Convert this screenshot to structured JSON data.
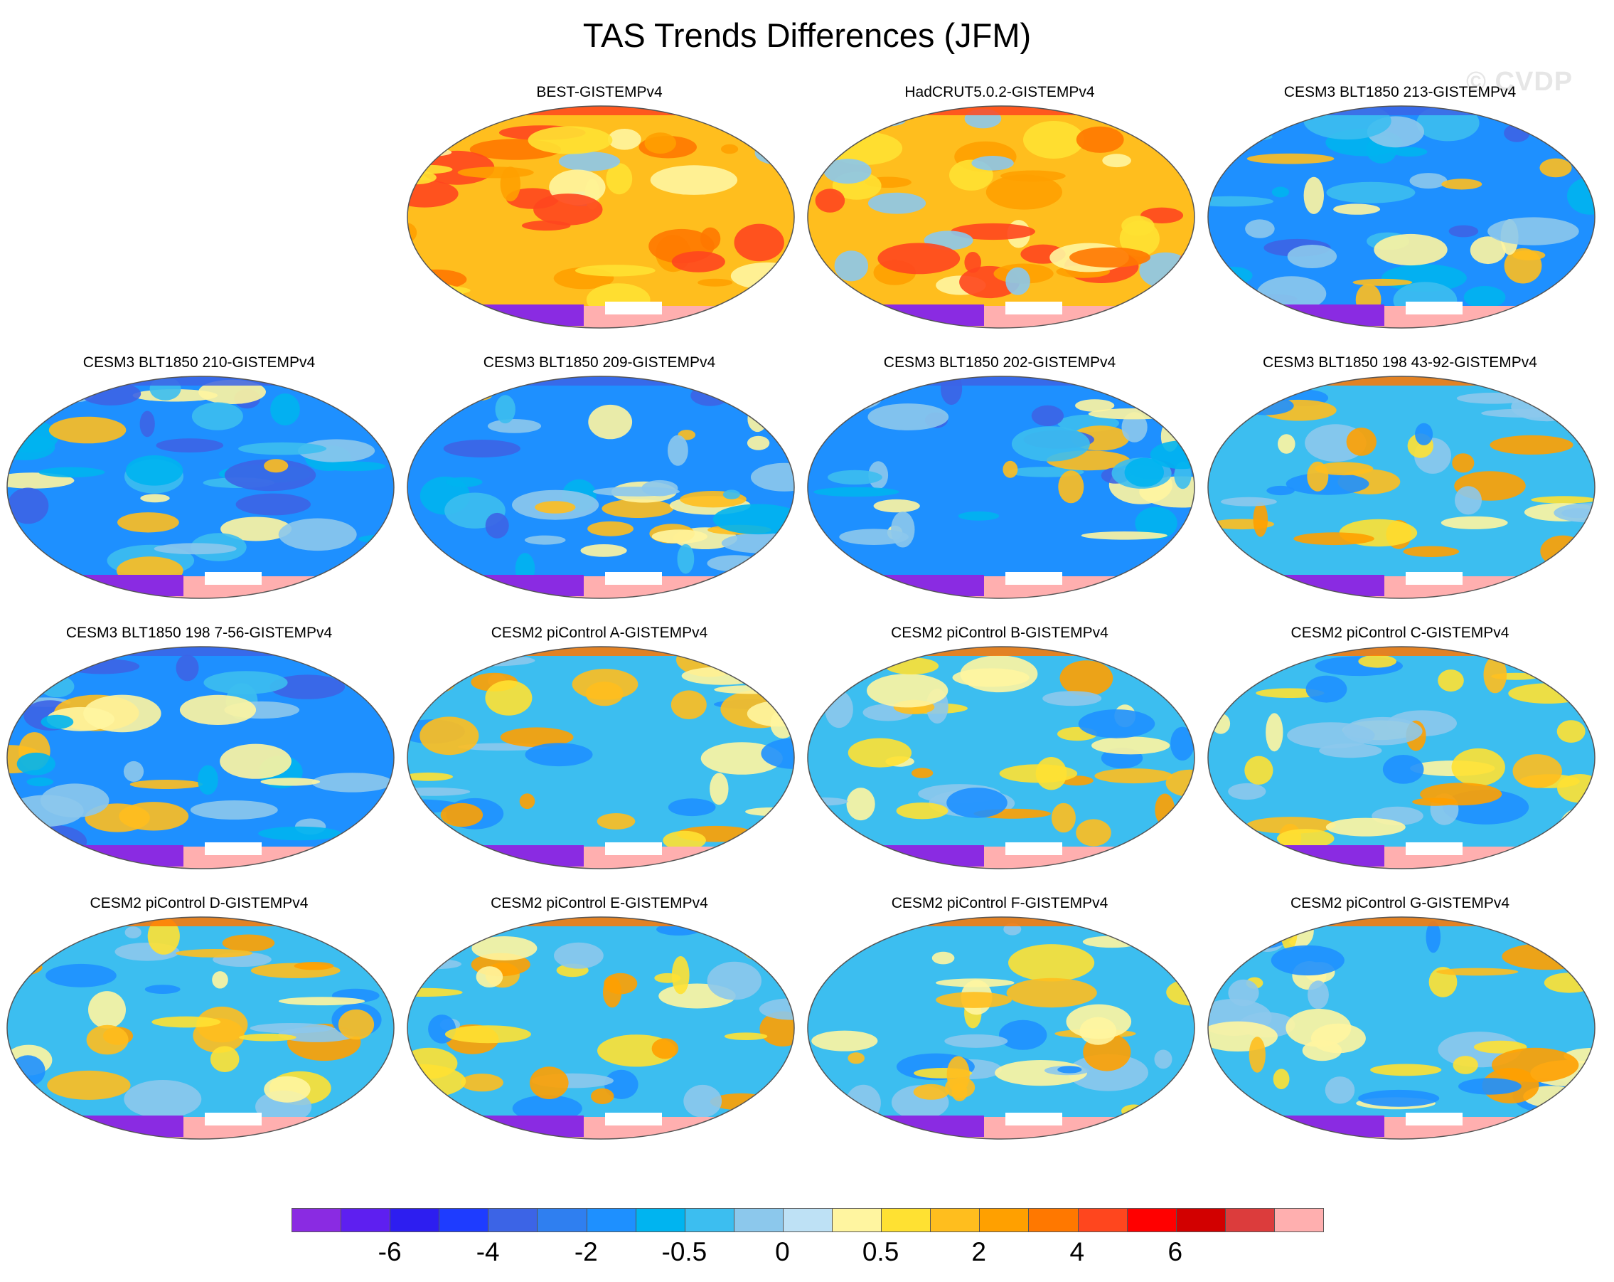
{
  "title": "TAS Trends Differences (JFM)",
  "watermark": "© CVDP",
  "panels": [
    {
      "label": "BEST-GISTEMPv4",
      "base": "warm",
      "row": 0,
      "col": 1
    },
    {
      "label": "HadCRUT5.0.2-GISTEMPv4",
      "base": "warm",
      "row": 0,
      "col": 2
    },
    {
      "label": "CESM3 BLT1850 213-GISTEMPv4",
      "base": "cold",
      "row": 0,
      "col": 3
    },
    {
      "label": "CESM3 BLT1850 210-GISTEMPv4",
      "base": "cold",
      "row": 1,
      "col": 0
    },
    {
      "label": "CESM3 BLT1850 209-GISTEMPv4",
      "base": "cold",
      "row": 1,
      "col": 1
    },
    {
      "label": "CESM3 BLT1850 202-GISTEMPv4",
      "base": "cold",
      "row": 1,
      "col": 2
    },
    {
      "label": "CESM3 BLT1850 198 43-92-GISTEMPv4",
      "base": "mixed",
      "row": 1,
      "col": 3
    },
    {
      "label": "CESM3 BLT1850 198 7-56-GISTEMPv4",
      "base": "cold",
      "row": 2,
      "col": 0
    },
    {
      "label": "CESM2 piControl A-GISTEMPv4",
      "base": "mixed",
      "row": 2,
      "col": 1
    },
    {
      "label": "CESM2 piControl B-GISTEMPv4",
      "base": "mixed",
      "row": 2,
      "col": 2
    },
    {
      "label": "CESM2 piControl C-GISTEMPv4",
      "base": "mixed",
      "row": 2,
      "col": 3
    },
    {
      "label": "CESM2 piControl D-GISTEMPv4",
      "base": "mixed",
      "row": 3,
      "col": 0
    },
    {
      "label": "CESM2 piControl E-GISTEMPv4",
      "base": "mixed",
      "row": 3,
      "col": 1
    },
    {
      "label": "CESM2 piControl F-GISTEMPv4",
      "base": "mixed",
      "row": 3,
      "col": 2
    },
    {
      "label": "CESM2 piControl G-GISTEMPv4",
      "base": "mixed",
      "row": 3,
      "col": 3
    }
  ],
  "colorbar": {
    "colors": [
      "#8a2be2",
      "#5e1ff0",
      "#2d1ef0",
      "#1e3cff",
      "#3c64e6",
      "#2f7ff0",
      "#1e90ff",
      "#00b4f0",
      "#3cbef0",
      "#8cc8ec",
      "#bee1f5",
      "#fff5a0",
      "#ffe132",
      "#ffbe1e",
      "#ffa000",
      "#ff7800",
      "#ff461e",
      "#ff0000",
      "#d20000",
      "#dc3c3c",
      "#ffafaf"
    ],
    "tick_labels": [
      "-6",
      "-4",
      "-2",
      "-0.5",
      "0",
      "0.5",
      "2",
      "4",
      "6"
    ]
  }
}
